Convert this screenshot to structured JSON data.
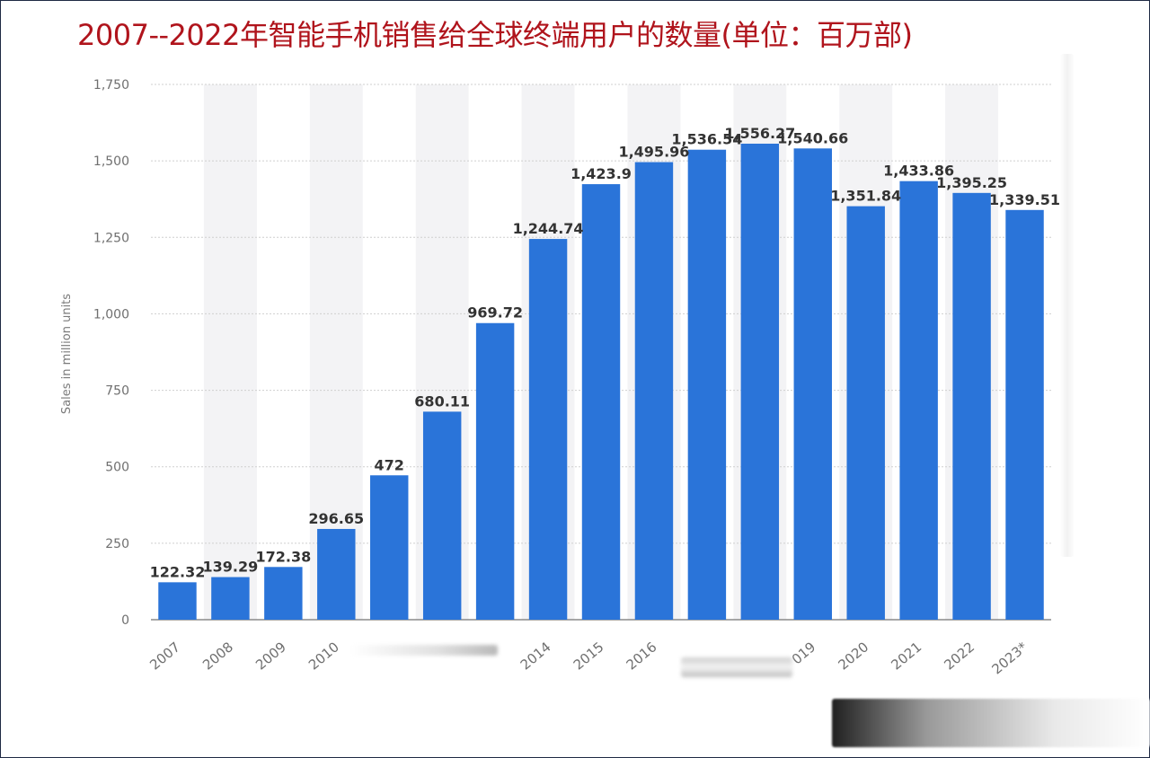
{
  "header": {
    "title": "2007--2022年智能手机销售给全球终端用户的数量(单位：百万部)"
  },
  "chart_data": {
    "type": "bar",
    "title": "2007--2022年智能手机销售给全球终端用户的数量(单位：百万部)",
    "xlabel": "",
    "ylabel": "Sales in million units",
    "ylim": [
      0,
      1750
    ],
    "yticks": [
      0,
      250,
      500,
      750,
      1000,
      1250,
      1500,
      1750
    ],
    "ytick_labels": [
      "0",
      "250",
      "500",
      "750",
      "1,000",
      "1,250",
      "1,500",
      "1,750"
    ],
    "grid": true,
    "categories": [
      "2007",
      "2008",
      "2009",
      "2010",
      "2011",
      "2012",
      "2013",
      "2014",
      "2015",
      "2016",
      "2017",
      "2018",
      "2019",
      "2020",
      "2021",
      "2022",
      "2023*"
    ],
    "category_label_visible": [
      true,
      true,
      true,
      true,
      false,
      false,
      false,
      true,
      true,
      true,
      false,
      false,
      true,
      true,
      true,
      true,
      true
    ],
    "category_display": [
      "2007",
      "2008",
      "2009",
      "2010",
      "",
      "",
      "",
      "2014",
      "2015",
      "2016",
      "",
      "",
      "019",
      "2020",
      "2021",
      "2022",
      "2023*"
    ],
    "values": [
      122.32,
      139.29,
      172.38,
      296.65,
      472,
      680.11,
      969.72,
      1244.74,
      1423.9,
      1495.96,
      1536.54,
      1556.27,
      1540.66,
      1351.84,
      1433.86,
      1395.25,
      1339.51
    ],
    "value_labels": [
      "122.32",
      "139.29",
      "172.38",
      "296.65",
      "472",
      "680.11",
      "969.72",
      "1,244.74",
      "1,423.9",
      "1,495.96",
      "1,536.54",
      "1,556.27",
      "1,540.66",
      "1,351.84",
      "1,433.86",
      "1,395.25",
      "1,339.51"
    ],
    "bar_color": "#2a74d9",
    "stripe_color": "#f3f3f5",
    "grid_color": "#cfcfcf"
  }
}
